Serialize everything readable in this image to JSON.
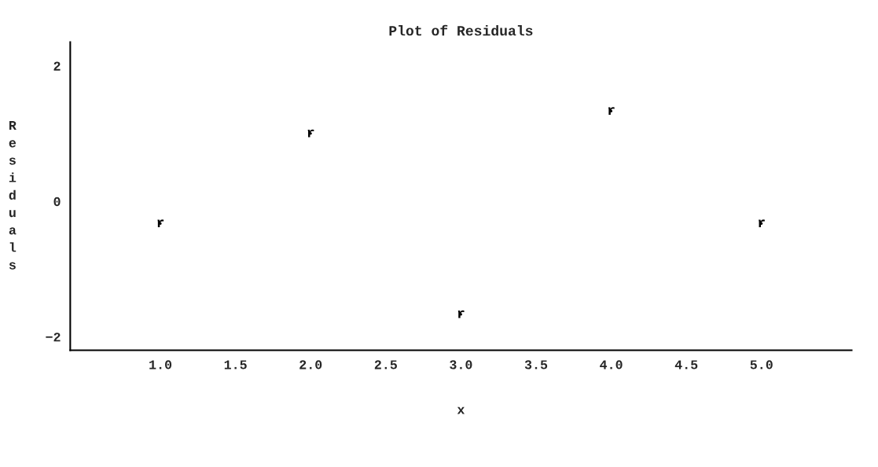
{
  "chart_data": {
    "type": "scatter",
    "title": "Plot of Residuals",
    "xlabel": "x",
    "ylabel": "Residuals",
    "x": [
      1.0,
      2.0,
      3.0,
      4.0,
      5.0
    ],
    "series": [
      {
        "color": "#000000",
        "values": [
          -0.33,
          1.0,
          -1.67,
          1.33,
          -0.33
        ]
      }
    ],
    "marker": "circle",
    "annotations": [
      {
        "text": "r",
        "x": 1.0,
        "y": -0.33
      },
      {
        "text": "r",
        "x": 2.0,
        "y": 1.0
      },
      {
        "text": "r",
        "x": 3.0,
        "y": -1.67
      },
      {
        "text": "r",
        "x": 4.0,
        "y": 1.33
      },
      {
        "text": "r",
        "x": 5.0,
        "y": -0.33
      }
    ],
    "xlim": [
      0.4,
      5.6
    ],
    "ylim": [
      -2.2,
      2.35
    ],
    "xticks": [
      {
        "value": 1.0,
        "label": "1.0"
      },
      {
        "value": 1.5,
        "label": "1.5"
      },
      {
        "value": 2.0,
        "label": "2.0"
      },
      {
        "value": 2.5,
        "label": "2.5"
      },
      {
        "value": 3.0,
        "label": "3.0"
      },
      {
        "value": 3.5,
        "label": "3.5"
      },
      {
        "value": 4.0,
        "label": "4.0"
      },
      {
        "value": 4.5,
        "label": "4.5"
      },
      {
        "value": 5.0,
        "label": "5.0"
      }
    ],
    "yticks": [
      -2,
      0,
      2
    ],
    "grid": false
  }
}
